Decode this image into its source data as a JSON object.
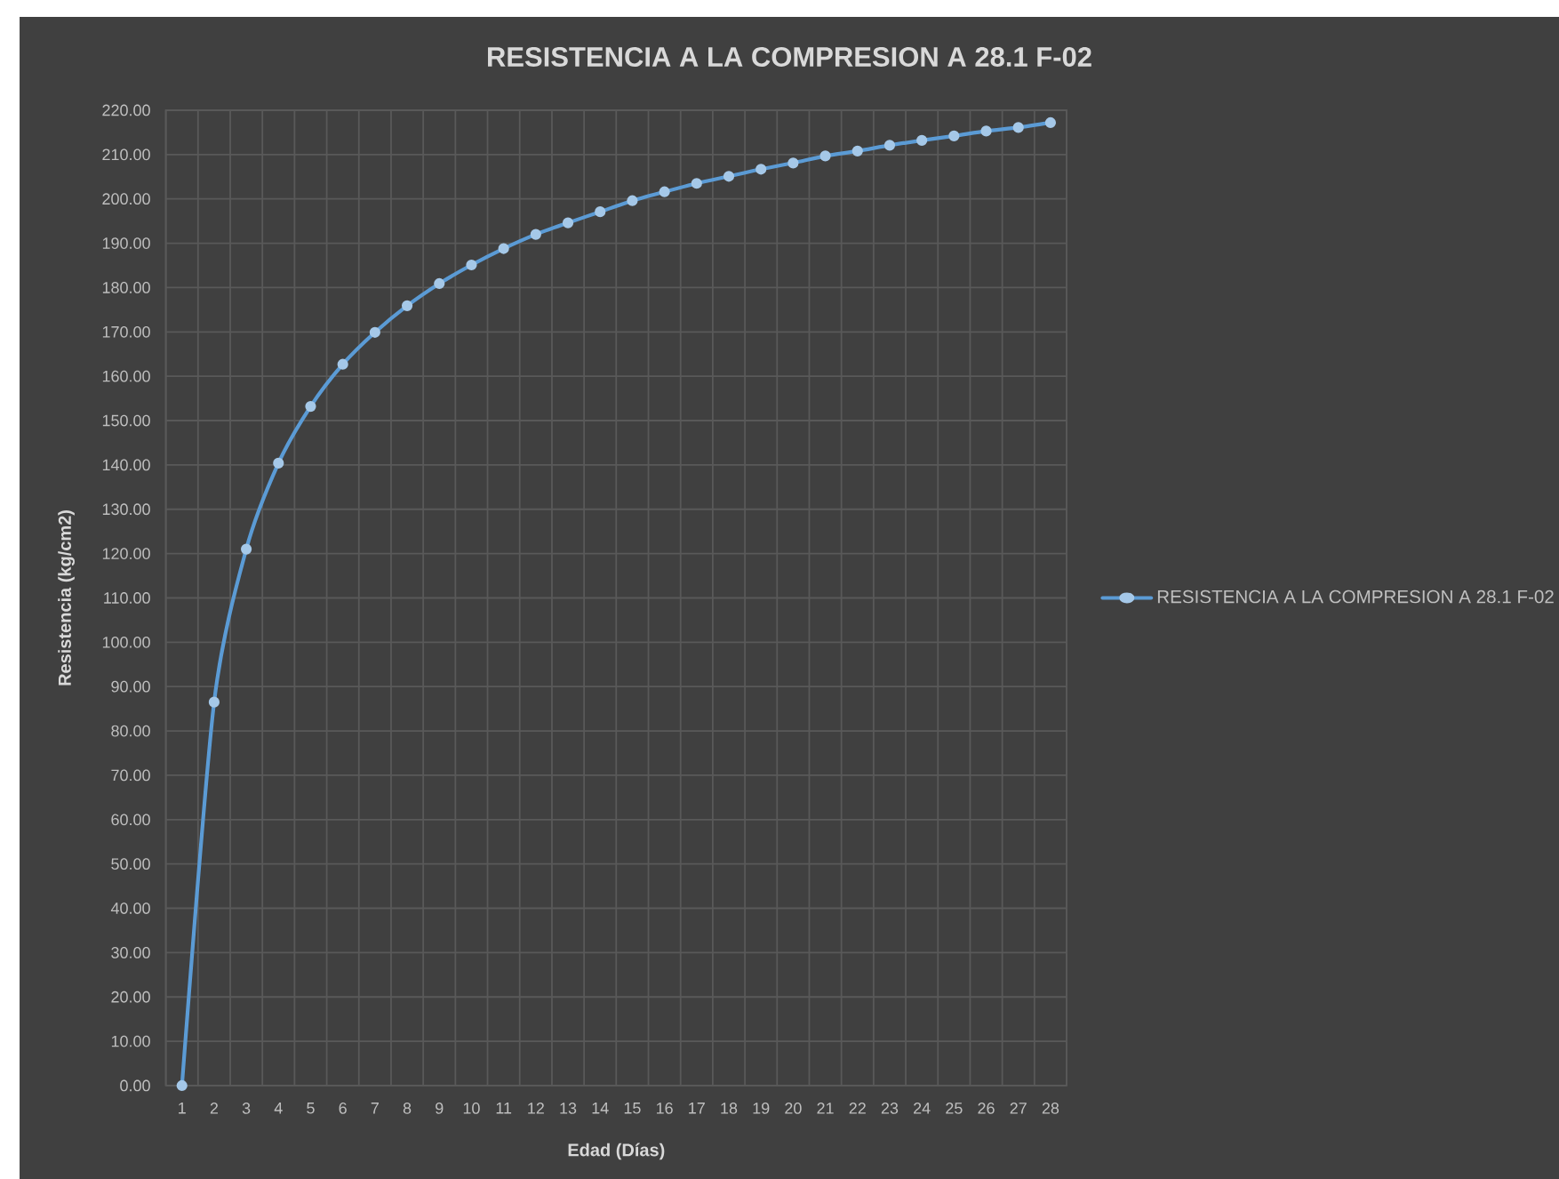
{
  "chart_data": {
    "type": "line",
    "title": "RESISTENCIA A LA COMPRESION A 28.1 F-02",
    "xlabel": "Edad (Días)",
    "ylabel": "Resistencia (kg/cm2)",
    "categories": [
      "1",
      "2",
      "3",
      "4",
      "5",
      "6",
      "7",
      "8",
      "9",
      "10",
      "11",
      "12",
      "13",
      "14",
      "15",
      "16",
      "17",
      "18",
      "19",
      "20",
      "21",
      "22",
      "23",
      "24",
      "25",
      "26",
      "27",
      "28"
    ],
    "series": [
      {
        "name": "RESISTENCIA A LA COMPRESION A 28.1 F-02",
        "color": "#5b9bd5",
        "values": [
          0,
          86.5,
          121.0,
          140.4,
          153.2,
          162.7,
          169.9,
          175.9,
          180.9,
          185.1,
          188.8,
          192.0,
          194.6,
          197.1,
          199.6,
          201.6,
          203.5,
          205.1,
          206.7,
          208.1,
          209.7,
          210.8,
          212.1,
          213.2,
          214.2,
          215.3,
          216.1,
          217.2
        ]
      }
    ],
    "ylim": [
      0,
      220
    ],
    "yticks": [
      {
        "value": 0,
        "label": "0.00"
      },
      {
        "value": 10,
        "label": "10.00"
      },
      {
        "value": 20,
        "label": "20.00"
      },
      {
        "value": 30,
        "label": "30.00"
      },
      {
        "value": 40,
        "label": "40.00"
      },
      {
        "value": 50,
        "label": "50.00"
      },
      {
        "value": 60,
        "label": "60.00"
      },
      {
        "value": 70,
        "label": "70.00"
      },
      {
        "value": 80,
        "label": "80.00"
      },
      {
        "value": 90,
        "label": "90.00"
      },
      {
        "value": 100,
        "label": "100.00"
      },
      {
        "value": 110,
        "label": "110.00"
      },
      {
        "value": 120,
        "label": "120.00"
      },
      {
        "value": 130,
        "label": "130.00"
      },
      {
        "value": 140,
        "label": "140.00"
      },
      {
        "value": 150,
        "label": "150.00"
      },
      {
        "value": 160,
        "label": "160.00"
      },
      {
        "value": 170,
        "label": "170.00"
      },
      {
        "value": 180,
        "label": "180.00"
      },
      {
        "value": 190,
        "label": "190.00"
      },
      {
        "value": 200,
        "label": "200.00"
      },
      {
        "value": 210,
        "label": "210.00"
      },
      {
        "value": 220,
        "label": "220.00"
      }
    ],
    "grid": true,
    "legend": "right",
    "marker": "circle",
    "line_style": "solid"
  }
}
